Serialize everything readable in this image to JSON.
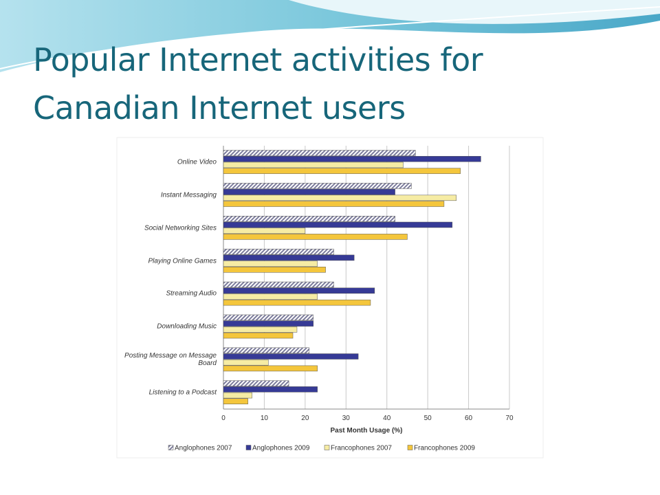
{
  "slide": {
    "title": "Popular Internet activities for Canadian Internet users"
  },
  "chart_data": {
    "type": "hbar",
    "categories": [
      "Online Video",
      "Instant Messaging",
      "Social Networking Sites",
      "Playing Online Games",
      "Streaming Audio",
      "Downloading Music",
      "Posting Message on Message Board",
      "Listening to a Podcast"
    ],
    "series": [
      {
        "name": "Anglophones 2007",
        "color": "#7c7c9c",
        "pattern": "hatch",
        "values": [
          47,
          46,
          42,
          27,
          27,
          22,
          21,
          16
        ]
      },
      {
        "name": "Anglophones 2009",
        "color": "#363a96",
        "values": [
          63,
          42,
          56,
          32,
          37,
          22,
          33,
          23
        ]
      },
      {
        "name": "Francophones 2007",
        "color": "#f6eca4",
        "values": [
          44,
          57,
          20,
          23,
          23,
          18,
          11,
          7
        ]
      },
      {
        "name": "Francophones 2009",
        "color": "#f4c63c",
        "values": [
          58,
          54,
          45,
          25,
          36,
          17,
          23,
          6
        ]
      }
    ],
    "xlabel": "Past Month Usage (%)",
    "xlim": [
      0,
      70
    ],
    "xticks": [
      0,
      10,
      20,
      30,
      40,
      50,
      60,
      70
    ],
    "grid": true,
    "legend": "bottom"
  }
}
